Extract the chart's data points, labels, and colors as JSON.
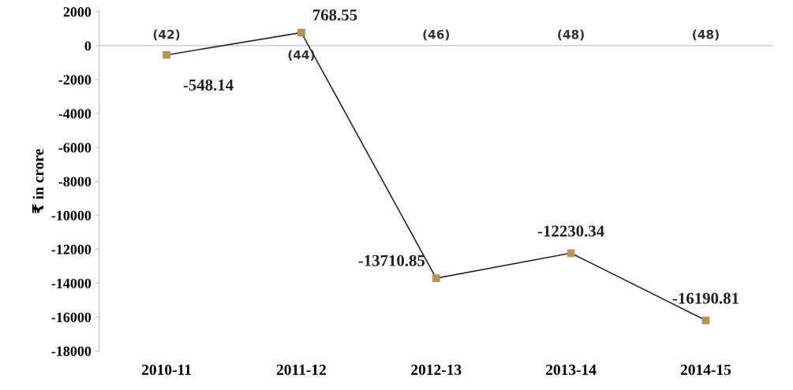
{
  "chart_data": {
    "type": "line",
    "ylabel": "₹ in crore",
    "categories": [
      "2010-11",
      "2011-12",
      "2012-13",
      "2013-14",
      "2014-15"
    ],
    "series": [
      {
        "color": "#b8925a",
        "values": [
          -548.14,
          768.55,
          -13710.85,
          -12230.34,
          -16190.81
        ]
      }
    ],
    "data_labels": true,
    "marker": "square",
    "line_style": "solid",
    "grid": false,
    "legend": false,
    "ylim": [
      -18000,
      2000
    ],
    "yticks": [
      -18000,
      -16000,
      -14000,
      -12000,
      -10000,
      -8000,
      -6000,
      -4000,
      -2000,
      0,
      2000
    ],
    "ref_lines": [
      {
        "axis": "y",
        "value": 0,
        "color": "#bfbfbf"
      }
    ],
    "annotations": [
      "(42)",
      "(44)",
      "(46)",
      "(48)",
      "(48)"
    ]
  }
}
